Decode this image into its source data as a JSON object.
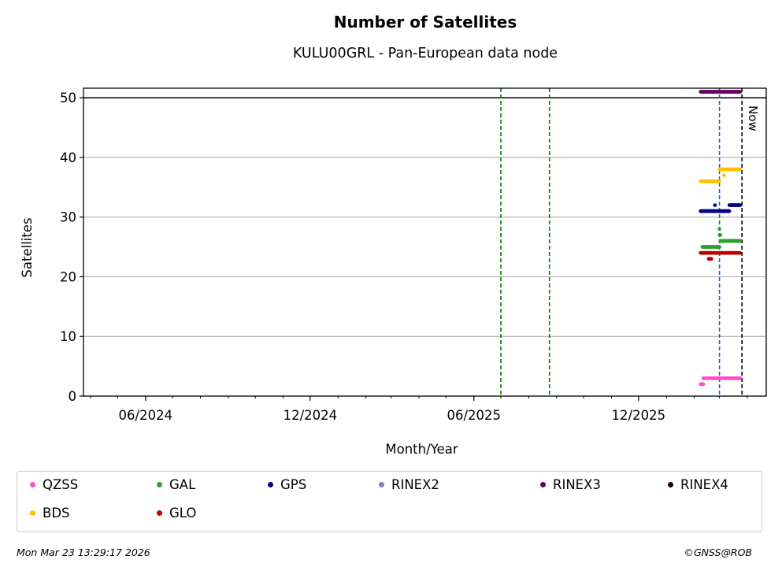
{
  "title": "Number of Satellites",
  "subtitle": "KULU00GRL - Pan-European data node",
  "chart_data": {
    "type": "scatter",
    "title": "Number of Satellites",
    "subtitle": "KULU00GRL - Pan-European data node",
    "xlabel": "Month/Year",
    "ylabel": "Satellites",
    "xlim": [
      "2024-03-24",
      "2026-04-22"
    ],
    "ylim": [
      0,
      51.6
    ],
    "x_ticks": [
      "2024-06-01",
      "2024-12-01",
      "2025-06-01",
      "2025-12-01"
    ],
    "x_tick_labels": [
      "06/2024",
      "12/2024",
      "06/2025",
      "12/2025"
    ],
    "y_ticks": [
      0,
      10,
      20,
      30,
      40,
      50
    ],
    "y_tick_labels": [
      "0",
      "10",
      "20",
      "30",
      "40",
      "50"
    ],
    "grid": "horizontal",
    "reference_lines": {
      "horizontal": [
        {
          "y": 50,
          "color": "#000000",
          "style": "solid"
        }
      ],
      "vertical": [
        {
          "x": "2025-07-01",
          "color": "#007700",
          "style": "dashed"
        },
        {
          "x": "2025-08-24",
          "color": "#007700",
          "style": "dashed"
        },
        {
          "x": "2026-03-01",
          "color": "#1f5fa8",
          "style": "dashed"
        },
        {
          "x": "2026-03-26",
          "color": "#000000",
          "style": "dashed",
          "label": "Now"
        }
      ]
    },
    "legend_position": "bottom",
    "series": [
      {
        "name": "QZSS",
        "color": "#ff4ccc",
        "segments": [
          {
            "start": "2026-02-08",
            "end": "2026-02-11",
            "y": 2
          },
          {
            "start": "2026-02-11",
            "end": "2026-03-24",
            "y": 3
          }
        ]
      },
      {
        "name": "GAL",
        "color": "#2ca02c",
        "segments": [
          {
            "start": "2026-02-10",
            "end": "2026-03-01",
            "y": 25
          },
          {
            "start": "2026-03-01",
            "end": "2026-03-02",
            "y": 27
          },
          {
            "start": "2026-03-01",
            "end": "2026-03-01",
            "y": 28
          },
          {
            "start": "2026-03-02",
            "end": "2026-03-24",
            "y": 26
          }
        ]
      },
      {
        "name": "GPS",
        "color": "#00008b",
        "segments": [
          {
            "start": "2026-02-08",
            "end": "2026-02-24",
            "y": 31
          },
          {
            "start": "2026-02-24",
            "end": "2026-02-24",
            "y": 32
          },
          {
            "start": "2026-02-24",
            "end": "2026-03-12",
            "y": 31
          },
          {
            "start": "2026-03-12",
            "end": "2026-03-24",
            "y": 32
          }
        ]
      },
      {
        "name": "RINEX2",
        "color": "#7f7fbf",
        "segments": []
      },
      {
        "name": "RINEX3",
        "color": "#660066",
        "segments": [
          {
            "start": "2026-02-08",
            "end": "2026-03-24",
            "y": 51
          }
        ]
      },
      {
        "name": "RINEX4",
        "color": "#1a0019",
        "segments": []
      },
      {
        "name": "BDS",
        "color": "#ffc000",
        "segments": [
          {
            "start": "2026-02-08",
            "end": "2026-03-01",
            "y": 36
          },
          {
            "start": "2026-03-01",
            "end": "2026-03-24",
            "y": 38
          },
          {
            "start": "2026-03-06",
            "end": "2026-03-06",
            "y": 37
          }
        ]
      },
      {
        "name": "GLO",
        "color": "#bb0000",
        "segments": [
          {
            "start": "2026-02-08",
            "end": "2026-03-24",
            "y": 24
          },
          {
            "start": "2026-02-17",
            "end": "2026-02-20",
            "y": 23
          }
        ]
      }
    ]
  },
  "legend": [
    {
      "label": "QZSS",
      "color": "#ff4ccc"
    },
    {
      "label": "GAL",
      "color": "#2ca02c"
    },
    {
      "label": "GPS",
      "color": "#00008b"
    },
    {
      "label": "RINEX2",
      "color": "#7f7fbf"
    },
    {
      "label": "RINEX3",
      "color": "#660066"
    },
    {
      "label": "RINEX4",
      "color": "#1a0019"
    },
    {
      "label": "BDS",
      "color": "#ffc000"
    },
    {
      "label": "GLO",
      "color": "#bb0000"
    }
  ],
  "footer": {
    "timestamp": "Mon Mar 23 13:29:17 2026",
    "credit": "©GNSS@ROB"
  }
}
